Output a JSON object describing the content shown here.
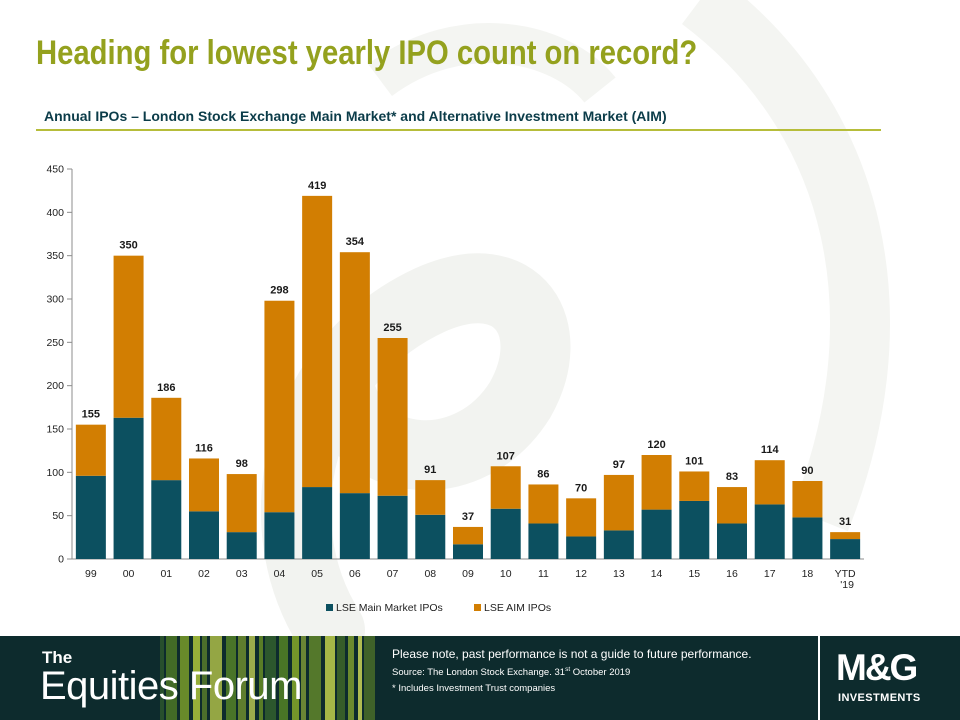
{
  "title": "Heading for lowest yearly IPO count on record?",
  "subtitle": "Annual IPOs – London Stock Exchange Main Market* and Alternative Investment Market (AIM)",
  "chart_data": {
    "type": "bar",
    "stacked": true,
    "categories": [
      "99",
      "00",
      "01",
      "02",
      "03",
      "04",
      "05",
      "06",
      "07",
      "08",
      "09",
      "10",
      "11",
      "12",
      "13",
      "14",
      "15",
      "16",
      "17",
      "18",
      "YTD '19"
    ],
    "series": [
      {
        "name": "LSE Main Market IPOs",
        "color": "#0c5060",
        "values": [
          96,
          163,
          91,
          55,
          31,
          54,
          83,
          76,
          73,
          51,
          17,
          58,
          41,
          26,
          33,
          57,
          67,
          41,
          63,
          48,
          23
        ]
      },
      {
        "name": "LSE AIM IPOs",
        "color": "#d27e02",
        "values": [
          59,
          187,
          95,
          61,
          67,
          244,
          336,
          278,
          182,
          40,
          20,
          49,
          45,
          44,
          64,
          63,
          34,
          42,
          51,
          42,
          8
        ]
      }
    ],
    "totals": [
      155,
      350,
      186,
      116,
      98,
      298,
      419,
      354,
      255,
      91,
      37,
      107,
      86,
      70,
      97,
      120,
      101,
      83,
      114,
      90,
      31
    ],
    "ylim": [
      0,
      450
    ],
    "yticks": [
      0,
      50,
      100,
      150,
      200,
      250,
      300,
      350,
      400,
      450
    ],
    "legend_position": "bottom",
    "grid": false
  },
  "footer": {
    "brand_the": "The",
    "brand_name": "Equities Forum",
    "disclaimer": "Please note, past performance  is not a guide to future performance.",
    "source_prefix": "Source: The London Stock Exchange. 31",
    "source_sup": "st",
    "source_suffix": " October 2019",
    "footnote": "* Includes Investment Trust companies",
    "logo_mark": "M&G",
    "logo_word": "INVESTMENTS"
  }
}
